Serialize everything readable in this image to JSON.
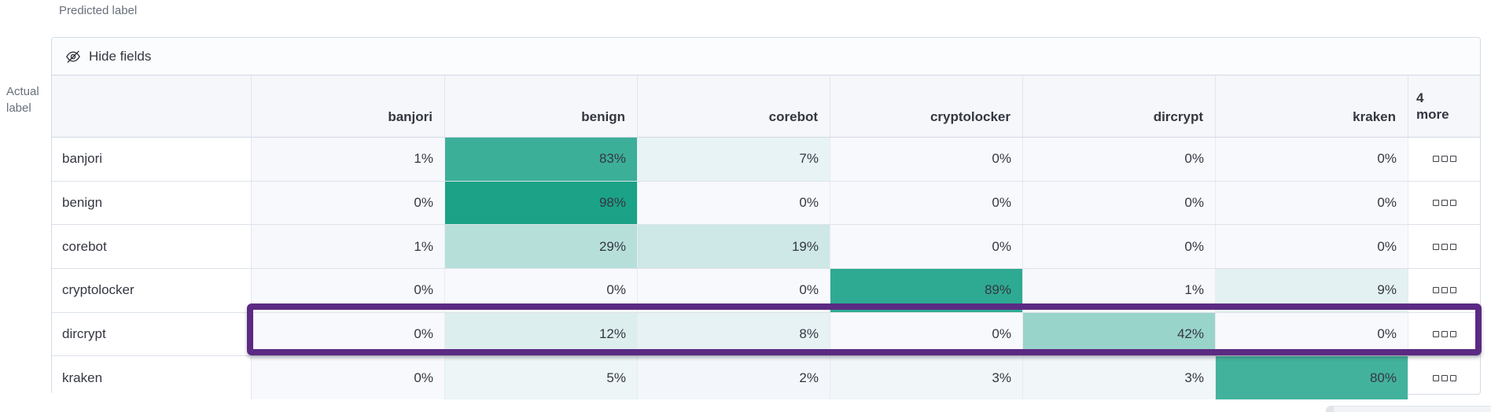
{
  "axis": {
    "predicted": "Predicted label",
    "actual_line1": "Actual",
    "actual_line2": "label"
  },
  "toolbar": {
    "hide_fields_label": "Hide fields",
    "hide_fields_icon": "eye-closed-icon"
  },
  "matrix": {
    "type": "heatmap",
    "columns": [
      "banjori",
      "benign",
      "corebot",
      "cryptolocker",
      "dircrypt",
      "kraken"
    ],
    "more_column": {
      "count": "4",
      "label": "more",
      "cell_icon": "boxes-horizontal-icon"
    },
    "rows": [
      {
        "label": "banjori",
        "values": [
          1,
          83,
          7,
          0,
          0,
          0
        ],
        "highlighted": false
      },
      {
        "label": "benign",
        "values": [
          0,
          98,
          0,
          0,
          0,
          0
        ],
        "highlighted": false
      },
      {
        "label": "corebot",
        "values": [
          1,
          29,
          19,
          0,
          0,
          0
        ],
        "highlighted": false
      },
      {
        "label": "cryptolocker",
        "values": [
          0,
          0,
          0,
          89,
          1,
          9
        ],
        "highlighted": false
      },
      {
        "label": "dircrypt",
        "values": [
          0,
          12,
          8,
          0,
          42,
          0
        ],
        "highlighted": true
      },
      {
        "label": "kraken",
        "values": [
          0,
          5,
          2,
          3,
          3,
          80
        ],
        "highlighted": false
      }
    ],
    "value_suffix": "%"
  },
  "colors": {
    "heat_base": "#16a085",
    "cell_bg": "#f8f9fd",
    "highlight_border": "#5b2a83",
    "header_bg": "#f5f7fa",
    "grid_border": "#d3dae6",
    "text": "#343741",
    "muted_text": "#69707d"
  }
}
